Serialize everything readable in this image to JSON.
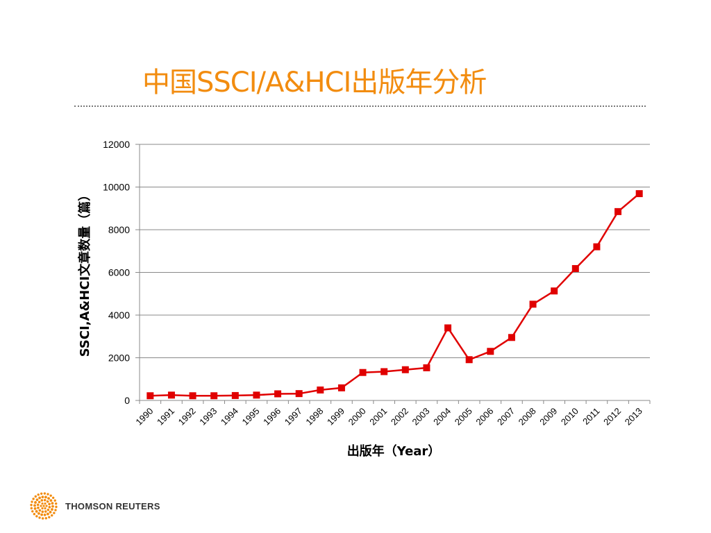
{
  "slide": {
    "title": "中国SSCI/A&HCI出版年分析",
    "brand": "THOMSON REUTERS"
  },
  "colors": {
    "title": "#f28c0f",
    "series": "#e00000",
    "grid": "#888888",
    "logo": "#f28c0f"
  },
  "icons": {
    "logo": "thomson-reuters-dot-globe-icon"
  },
  "chart_data": {
    "type": "line",
    "title": "",
    "xlabel": "出版年（Year）",
    "ylabel": "SSCI,A&HCI文章数量（篇）",
    "ylim": [
      0,
      12000
    ],
    "yticks": [
      0,
      2000,
      4000,
      6000,
      8000,
      10000,
      12000
    ],
    "grid": true,
    "legend": "none",
    "categories": [
      "1990",
      "1991",
      "1992",
      "1993",
      "1994",
      "1995",
      "1996",
      "1997",
      "1998",
      "1999",
      "2000",
      "2001",
      "2002",
      "2003",
      "2004",
      "2005",
      "2006",
      "2007",
      "2008",
      "2009",
      "2010",
      "2011",
      "2012",
      "2013"
    ],
    "series": [
      {
        "values": [
          220,
          250,
          220,
          220,
          230,
          250,
          310,
          320,
          490,
          590,
          1310,
          1350,
          1440,
          1530,
          3400,
          1910,
          2300,
          2950,
          4510,
          5130,
          6180,
          7200,
          8850,
          9690
        ]
      }
    ]
  }
}
